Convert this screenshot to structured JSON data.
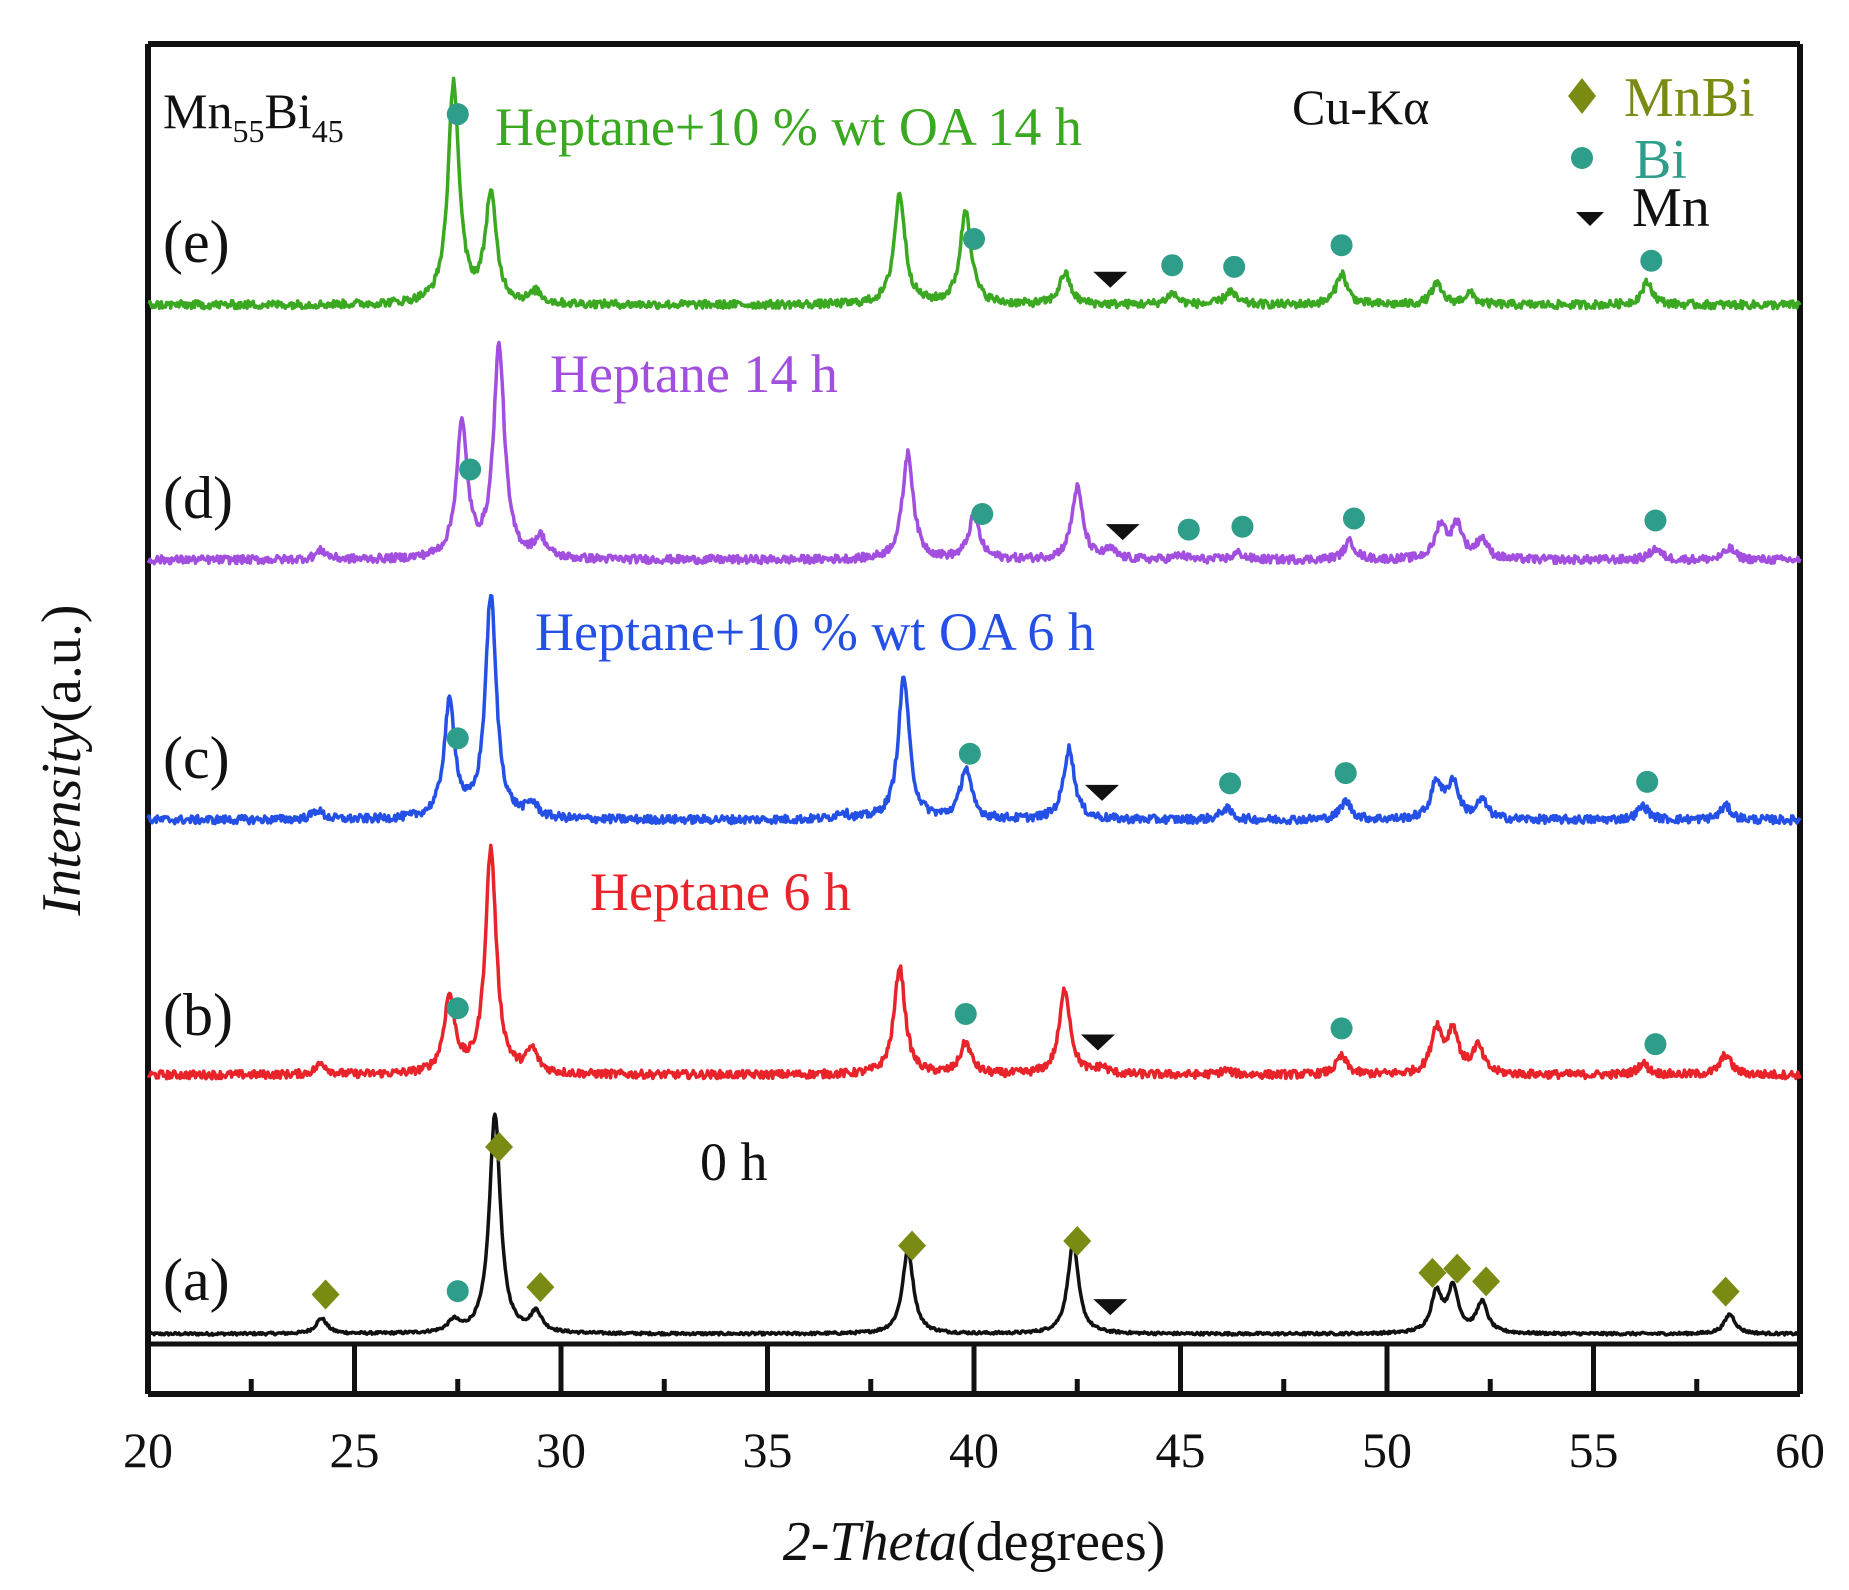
{
  "chart_data": {
    "type": "line",
    "title": "",
    "xlabel_italic": "2-Theta",
    "xlabel_unit": "(degrees)",
    "ylabel_italic": "Intensity",
    "ylabel_unit": "(a.u.)",
    "xlim": [
      20,
      60
    ],
    "xticks": [
      "20",
      "25",
      "30",
      "35",
      "40",
      "45",
      "50",
      "55",
      "60"
    ],
    "yticks": [],
    "composition": {
      "base": "Mn",
      "sub1": "55",
      "mid": "Bi",
      "sub2": "45"
    },
    "radiation": "Cu-Kα",
    "legend": [
      {
        "marker": "diamond",
        "label": "MnBi",
        "color": "#7a8a12"
      },
      {
        "marker": "circle",
        "label": "Bi",
        "color": "#2e9e8a"
      },
      {
        "marker": "triangle-down",
        "label": "Mn",
        "color": "#111111"
      }
    ],
    "series": [
      {
        "tag": "(a)",
        "name": "0 h",
        "color": "#111111",
        "peaks": [
          [
            24.2,
            0.07
          ],
          [
            27.4,
            0.05
          ],
          [
            28.4,
            1.0
          ],
          [
            29.4,
            0.09
          ],
          [
            38.4,
            0.38
          ],
          [
            42.4,
            0.41
          ],
          [
            51.2,
            0.18
          ],
          [
            51.6,
            0.2
          ],
          [
            52.3,
            0.14
          ],
          [
            58.3,
            0.09
          ]
        ],
        "markers": [
          {
            "type": "diamond",
            "x": 24.3
          },
          {
            "type": "circle",
            "x": 27.5
          },
          {
            "type": "diamond",
            "x": 28.5
          },
          {
            "type": "diamond",
            "x": 29.5
          },
          {
            "type": "diamond",
            "x": 38.5
          },
          {
            "type": "diamond",
            "x": 42.5
          },
          {
            "type": "triangle",
            "x": 43.3
          },
          {
            "type": "diamond",
            "x": 51.1
          },
          {
            "type": "diamond",
            "x": 51.7
          },
          {
            "type": "diamond",
            "x": 52.4
          },
          {
            "type": "diamond",
            "x": 58.2
          }
        ]
      },
      {
        "tag": "(b)",
        "name": "Heptane 6 h",
        "color": "#e8232a",
        "peaks": [
          [
            24.2,
            0.05
          ],
          [
            27.3,
            0.34
          ],
          [
            28.3,
            1.0
          ],
          [
            29.3,
            0.1
          ],
          [
            38.2,
            0.48
          ],
          [
            39.8,
            0.14
          ],
          [
            42.2,
            0.38
          ],
          [
            43.1,
            0.03
          ],
          [
            46.1,
            0.02
          ],
          [
            48.9,
            0.08
          ],
          [
            51.2,
            0.2
          ],
          [
            51.6,
            0.19
          ],
          [
            52.2,
            0.12
          ],
          [
            56.2,
            0.05
          ],
          [
            58.2,
            0.09
          ]
        ],
        "markers": [
          {
            "type": "circle",
            "x": 27.5
          },
          {
            "type": "circle",
            "x": 39.8
          },
          {
            "type": "triangle",
            "x": 43.0
          },
          {
            "type": "circle",
            "x": 48.9
          },
          {
            "type": "circle",
            "x": 56.5
          }
        ]
      },
      {
        "tag": "(c)",
        "name": "Heptane+10 % wt OA 6 h",
        "color": "#2450e6",
        "peaks": [
          [
            24.1,
            0.04
          ],
          [
            27.3,
            0.5
          ],
          [
            28.3,
            0.97
          ],
          [
            29.3,
            0.06
          ],
          [
            36.8,
            0.03
          ],
          [
            38.3,
            0.62
          ],
          [
            39.8,
            0.22
          ],
          [
            42.3,
            0.31
          ],
          [
            46.1,
            0.05
          ],
          [
            49.0,
            0.08
          ],
          [
            51.2,
            0.16
          ],
          [
            51.6,
            0.16
          ],
          [
            52.3,
            0.08
          ],
          [
            56.2,
            0.06
          ],
          [
            58.2,
            0.06
          ]
        ],
        "markers": [
          {
            "type": "circle",
            "x": 27.5
          },
          {
            "type": "circle",
            "x": 39.9
          },
          {
            "type": "triangle",
            "x": 43.1
          },
          {
            "type": "circle",
            "x": 46.2
          },
          {
            "type": "circle",
            "x": 49.0
          },
          {
            "type": "circle",
            "x": 56.3
          }
        ]
      },
      {
        "tag": "(d)",
        "name": "Heptane 14 h",
        "color": "#a24fe0",
        "peaks": [
          [
            24.2,
            0.04
          ],
          [
            27.6,
            0.59
          ],
          [
            28.5,
            0.94
          ],
          [
            29.5,
            0.09
          ],
          [
            38.4,
            0.47
          ],
          [
            40.0,
            0.19
          ],
          [
            42.5,
            0.32
          ],
          [
            43.3,
            0.04
          ],
          [
            45.0,
            0.02
          ],
          [
            46.4,
            0.03
          ],
          [
            49.1,
            0.08
          ],
          [
            51.3,
            0.15
          ],
          [
            51.7,
            0.15
          ],
          [
            52.3,
            0.09
          ],
          [
            56.5,
            0.05
          ],
          [
            58.3,
            0.05
          ]
        ],
        "markers": [
          {
            "type": "circle",
            "x": 27.8
          },
          {
            "type": "circle",
            "x": 40.2
          },
          {
            "type": "triangle",
            "x": 43.6
          },
          {
            "type": "circle",
            "x": 45.2
          },
          {
            "type": "circle",
            "x": 46.5
          },
          {
            "type": "circle",
            "x": 49.2
          },
          {
            "type": "circle",
            "x": 56.5
          }
        ]
      },
      {
        "tag": "(e)",
        "name": "Heptane+10 % wt OA 14 h",
        "color": "#3aa820",
        "peaks": [
          [
            27.4,
            0.98
          ],
          [
            28.3,
            0.48
          ],
          [
            29.4,
            0.05
          ],
          [
            38.2,
            0.49
          ],
          [
            39.8,
            0.42
          ],
          [
            42.2,
            0.14
          ],
          [
            44.8,
            0.05
          ],
          [
            46.2,
            0.06
          ],
          [
            48.9,
            0.14
          ],
          [
            51.2,
            0.09
          ],
          [
            52.0,
            0.05
          ],
          [
            56.3,
            0.1
          ]
        ],
        "markers": [
          {
            "type": "circle",
            "x": 27.5
          },
          {
            "type": "circle",
            "x": 40.0
          },
          {
            "type": "triangle",
            "x": 43.3
          },
          {
            "type": "circle",
            "x": 44.8
          },
          {
            "type": "circle",
            "x": 46.3
          },
          {
            "type": "circle",
            "x": 48.9
          },
          {
            "type": "circle",
            "x": 56.4
          }
        ]
      }
    ]
  }
}
